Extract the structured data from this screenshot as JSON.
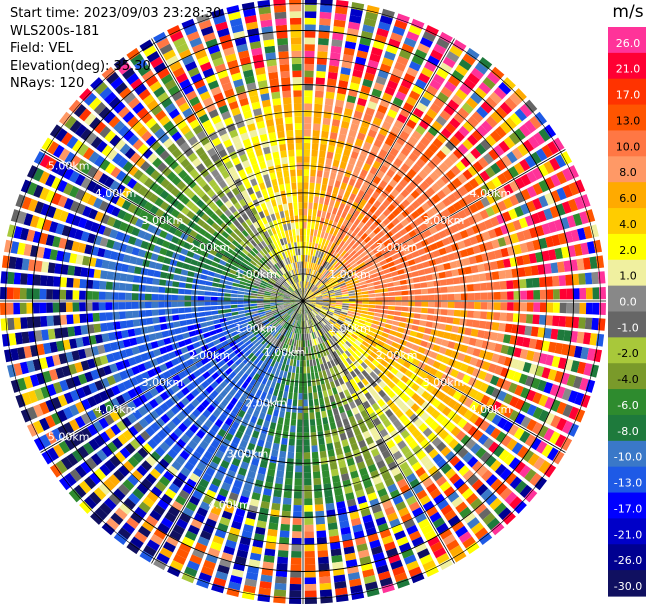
{
  "header": {
    "start_time": "Start time: 2023/09/03 23:28:30",
    "station": "WLS200s-181",
    "field": "Field: VEL",
    "elevation": "Elevation(deg): 35.30",
    "nrays": "NRays: 120"
  },
  "chart_data": {
    "type": "heatmap",
    "projection": "polar-ppi",
    "field": "VEL",
    "n_rays": 120,
    "range_ring_labels": [
      "1.00km",
      "2.00km",
      "3.00km",
      "4.00km",
      "5.00km"
    ],
    "range_rings_km": [
      1,
      2,
      3,
      4,
      5
    ],
    "max_range_km": 5.6,
    "grid": true,
    "colorbar": {
      "unit": "m/s",
      "position": "right",
      "tick_labels": [
        "26.0",
        "21.0",
        "17.0",
        "13.0",
        "10.0",
        "8.0",
        "6.0",
        "4.0",
        "2.0",
        "1.0",
        "0.0",
        "-1.0",
        "-2.0",
        "-4.0",
        "-6.0",
        "-8.0",
        "-10.0",
        "-13.0",
        "-17.0",
        "-21.0",
        "-26.0",
        "-30.0"
      ],
      "colors": [
        "#ff3399",
        "#ff0033",
        "#ff3300",
        "#ff5500",
        "#ff7744",
        "#ff9966",
        "#ffaa00",
        "#ffcc00",
        "#ffff00",
        "#f0f0a0",
        "#888888",
        "#666666",
        "#a8c83a",
        "#7a9a2a",
        "#2e8b2e",
        "#1e7a3c",
        "#3a78c8",
        "#1e5ae6",
        "#0000ff",
        "#0000c8",
        "#000090",
        "#101060"
      ]
    },
    "velocity_pattern": {
      "description_free": true,
      "amplitude_ms": 12,
      "max_positive_azimuth_deg": 60,
      "near_range_zero_band_km": 1.0
    }
  }
}
